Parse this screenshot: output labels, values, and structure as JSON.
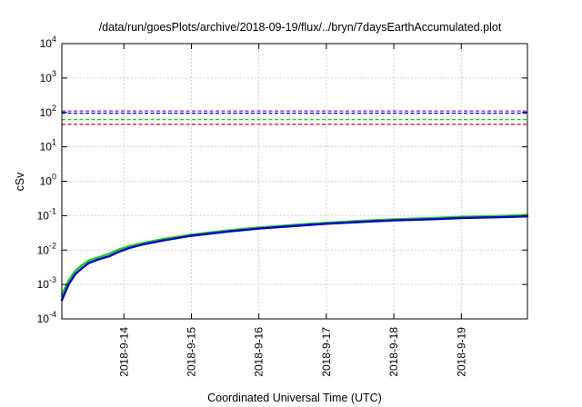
{
  "chart_data": {
    "type": "line",
    "title": "/data/run/goesPlots/archive/2018-09-19/flux/../bryn/7daysEarthAccumulated.plot",
    "xlabel": "Coordinated Universal Time (UTC)",
    "ylabel": "cSv",
    "x_ticks": [
      "2018-9-14",
      "2018-9-15",
      "2018-9-16",
      "2018-9-17",
      "2018-9-18",
      "2018-9-19"
    ],
    "xlim_days": [
      0,
      6.9
    ],
    "x_tick_positions_days": [
      0.92,
      1.92,
      2.92,
      3.92,
      4.92,
      5.92
    ],
    "y_scale": "log",
    "ylim": [
      0.0001,
      10000
    ],
    "y_ticks": [
      {
        "base": "10",
        "exp": "-4",
        "value": 0.0001
      },
      {
        "base": "10",
        "exp": "-3",
        "value": 0.001
      },
      {
        "base": "10",
        "exp": "-2",
        "value": 0.01
      },
      {
        "base": "10",
        "exp": "-1",
        "value": 0.1
      },
      {
        "base": "10",
        "exp": "0",
        "value": 1
      },
      {
        "base": "10",
        "exp": "1",
        "value": 10
      },
      {
        "base": "10",
        "exp": "2",
        "value": 100
      },
      {
        "base": "10",
        "exp": "3",
        "value": 1000
      },
      {
        "base": "10",
        "exp": "4",
        "value": 10000
      }
    ],
    "grid": true,
    "threshold_lines": [
      {
        "color": "#8a2be2",
        "value": 110
      },
      {
        "color": "#0000cc",
        "value": 95
      },
      {
        "color": "#22cc22",
        "value": 62
      },
      {
        "color": "#dd0000",
        "value": 45
      }
    ],
    "series": [
      {
        "color": "#22cc22",
        "points": [
          [
            0,
            0.0005
          ],
          [
            0.1,
            0.0013
          ],
          [
            0.2,
            0.0025
          ],
          [
            0.3,
            0.0037
          ],
          [
            0.4,
            0.005
          ],
          [
            0.55,
            0.0062
          ],
          [
            0.7,
            0.0078
          ],
          [
            0.85,
            0.0105
          ],
          [
            1.0,
            0.013
          ],
          [
            1.2,
            0.016
          ],
          [
            1.5,
            0.021
          ],
          [
            1.92,
            0.028
          ],
          [
            2.5,
            0.038
          ],
          [
            2.92,
            0.045
          ],
          [
            3.5,
            0.055
          ],
          [
            3.92,
            0.062
          ],
          [
            4.5,
            0.072
          ],
          [
            4.92,
            0.078
          ],
          [
            5.5,
            0.085
          ],
          [
            5.92,
            0.092
          ],
          [
            6.5,
            0.098
          ],
          [
            6.9,
            0.105
          ]
        ]
      },
      {
        "color": "#0000cc",
        "points": [
          [
            0,
            0.00035
          ],
          [
            0.1,
            0.001
          ],
          [
            0.2,
            0.002
          ],
          [
            0.3,
            0.003
          ],
          [
            0.4,
            0.0042
          ],
          [
            0.55,
            0.0054
          ],
          [
            0.7,
            0.0066
          ],
          [
            0.85,
            0.009
          ],
          [
            1.0,
            0.0115
          ],
          [
            1.2,
            0.0145
          ],
          [
            1.5,
            0.019
          ],
          [
            1.92,
            0.026
          ],
          [
            2.5,
            0.035
          ],
          [
            2.92,
            0.042
          ],
          [
            3.5,
            0.051
          ],
          [
            3.92,
            0.058
          ],
          [
            4.5,
            0.067
          ],
          [
            4.92,
            0.073
          ],
          [
            5.5,
            0.079
          ],
          [
            5.92,
            0.085
          ],
          [
            6.5,
            0.09
          ],
          [
            6.9,
            0.095
          ]
        ]
      }
    ]
  }
}
